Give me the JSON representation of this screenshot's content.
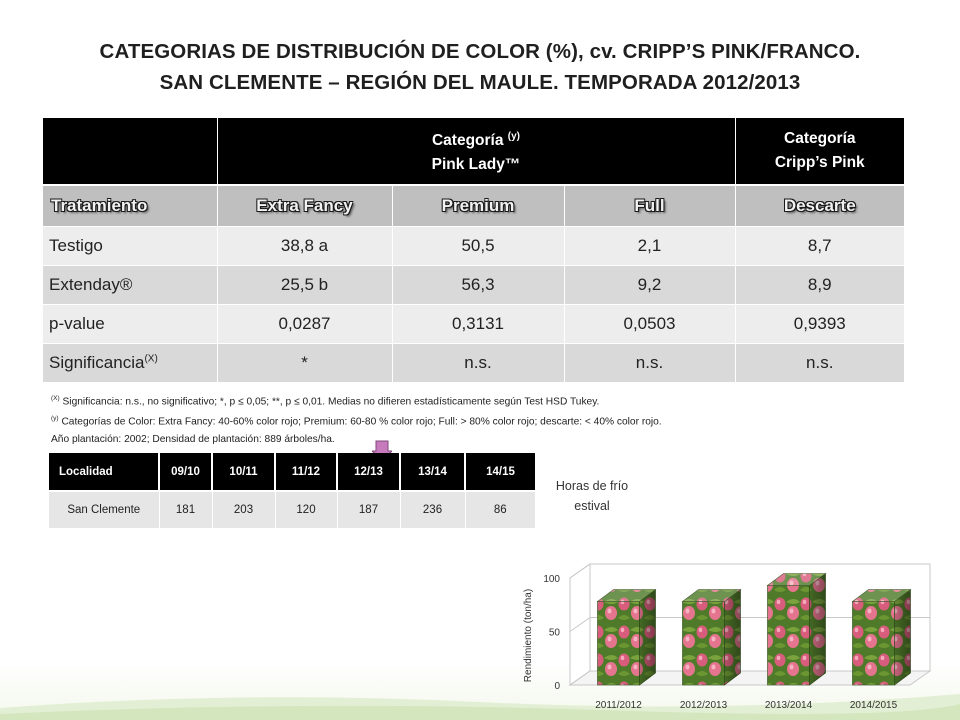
{
  "title": {
    "line1": "CATEGORIAS DE DISTRIBUCIÓN DE COLOR (%), cv. CRIPP’S PINK/FRANCO.",
    "line2": "SAN CLEMENTE – REGIÓN DEL MAULE. TEMPORADA 2012/2013"
  },
  "main_table": {
    "group1": {
      "label": "Categoría",
      "sup": "(y)",
      "sub": "Pink Lady™"
    },
    "group2": {
      "label": "Categoría",
      "sub": "Cripp’s Pink"
    },
    "columns": [
      "Tratamiento",
      "Extra Fancy",
      "Premium",
      "Full",
      "Descarte"
    ],
    "rows": [
      {
        "label": "Testigo",
        "sup": "",
        "cells": [
          "38,8 a",
          "50,5",
          "2,1",
          "8,7"
        ]
      },
      {
        "label": "Extenday®",
        "sup": "",
        "cells": [
          "25,5 b",
          "56,3",
          "9,2",
          "8,9"
        ]
      },
      {
        "label": "p-value",
        "sup": "",
        "cells": [
          "0,0287",
          "0,3131",
          "0,0503",
          "0,9393"
        ]
      },
      {
        "label": "Significancia",
        "sup": "(X)",
        "cells": [
          "*",
          "n.s.",
          "n.s.",
          "n.s."
        ]
      }
    ]
  },
  "notes": [
    {
      "sup": "(X)",
      "text": "Significancia: n.s., no significativo; *, p ≤ 0,05; **, p ≤ 0,01. Medias no difieren estadísticamente según Test HSD Tukey."
    },
    {
      "sup": "(y)",
      "text": "Categorías de Color: Extra Fancy: 40-60% color rojo; Premium: 60-80 % color rojo; Full: > 80% color rojo; descarte: < 40% color rojo."
    },
    {
      "sup": "",
      "text": "Año plantación: 2002; Densidad de plantación: 889 árboles/ha."
    }
  ],
  "locality_table": {
    "columns": [
      "Localidad",
      "09/10",
      "10/11",
      "11/12",
      "12/13",
      "13/14",
      "14/15"
    ],
    "rows": [
      [
        "San Clemente",
        "181",
        "203",
        "120",
        "187",
        "236",
        "86"
      ]
    ]
  },
  "side_label": {
    "line1": "Horas de frío",
    "line2": "estival"
  },
  "colors": {
    "arrow": "#c77bbd",
    "header_dark": "#000000",
    "header_gray": "#bfbfbf",
    "row_light": "#ededed",
    "row_mid": "#d9d9d9",
    "apple_green": "#4f7a2a",
    "apple_pink": "#e5748f"
  },
  "chart_data": {
    "type": "bar",
    "categories": [
      "2011/2012",
      "2012/2013",
      "2013/2014",
      "2014/2015"
    ],
    "values": [
      78,
      78,
      93,
      78
    ],
    "ylabel": "Rendimiento (ton/ha)",
    "ylim": [
      0,
      100
    ],
    "yticks": [
      "0",
      "50",
      "100"
    ],
    "bar_style": "3d-box-apple-texture",
    "grid": true,
    "legend": "none"
  }
}
